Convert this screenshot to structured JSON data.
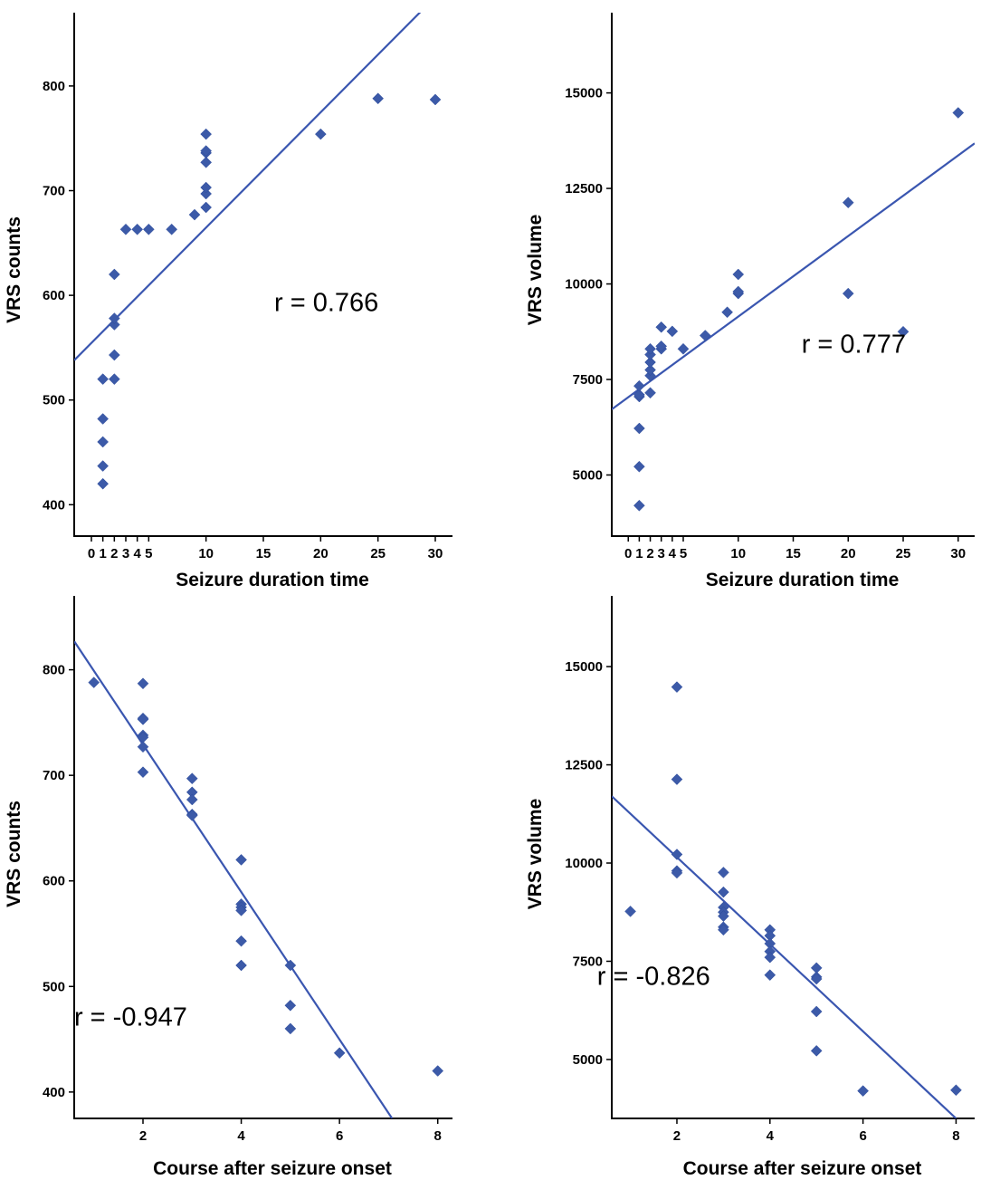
{
  "colors": {
    "point": "#3c5aa8",
    "fit_line": "#3a56b0",
    "axis": "#000000"
  },
  "chart_data": [
    {
      "id": "top-left",
      "type": "scatter",
      "xlabel": "Seizure duration time",
      "ylabel": "VRS counts",
      "xlim": [
        -1.5,
        31.5
      ],
      "ylim": [
        370,
        870
      ],
      "xticks": [
        0,
        1,
        2,
        3,
        4,
        5,
        10,
        15,
        20,
        25,
        30
      ],
      "xtick_labels": [
        "0",
        "1",
        "2",
        "3",
        "4",
        "5",
        "10",
        "15",
        "20",
        "25",
        "30"
      ],
      "yticks": [
        400,
        500,
        600,
        700,
        800
      ],
      "ytick_labels": [
        "400",
        "500",
        "600",
        "700",
        "800"
      ],
      "points": [
        {
          "x": 1,
          "y": 420
        },
        {
          "x": 1,
          "y": 437
        },
        {
          "x": 1,
          "y": 460
        },
        {
          "x": 1,
          "y": 482
        },
        {
          "x": 1,
          "y": 520
        },
        {
          "x": 2,
          "y": 520
        },
        {
          "x": 2,
          "y": 543
        },
        {
          "x": 2,
          "y": 572
        },
        {
          "x": 2,
          "y": 578
        },
        {
          "x": 2,
          "y": 620
        },
        {
          "x": 3,
          "y": 663
        },
        {
          "x": 4,
          "y": 663
        },
        {
          "x": 5,
          "y": 663
        },
        {
          "x": 7,
          "y": 663
        },
        {
          "x": 9,
          "y": 677
        },
        {
          "x": 10,
          "y": 684
        },
        {
          "x": 10,
          "y": 697
        },
        {
          "x": 10,
          "y": 703
        },
        {
          "x": 10,
          "y": 727
        },
        {
          "x": 10,
          "y": 736
        },
        {
          "x": 10,
          "y": 738
        },
        {
          "x": 10,
          "y": 754
        },
        {
          "x": 20,
          "y": 754
        },
        {
          "x": 25,
          "y": 788
        },
        {
          "x": 30,
          "y": 787
        }
      ],
      "fit": {
        "x": [
          -1.5,
          29
        ],
        "y": [
          538,
          874
        ]
      },
      "annotation": "r = 0.766",
      "annotation_pos": {
        "x": 20.5,
        "y": 585
      }
    },
    {
      "id": "top-right",
      "type": "scatter",
      "xlabel": "Seizure duration time",
      "ylabel": "VRS volume",
      "xlim": [
        -1.5,
        31.5
      ],
      "ylim": [
        3400,
        17100
      ],
      "xticks": [
        0,
        1,
        2,
        3,
        4,
        5,
        10,
        15,
        20,
        25,
        30
      ],
      "xtick_labels": [
        "0",
        "1",
        "2",
        "3",
        "4",
        "5",
        "10",
        "15",
        "20",
        "25",
        "30"
      ],
      "yticks": [
        5000,
        7500,
        10000,
        12500,
        15000
      ],
      "ytick_labels": [
        "5000",
        "7500",
        "10000",
        "12500",
        "15000"
      ],
      "points": [
        {
          "x": 1,
          "y": 4200
        },
        {
          "x": 1,
          "y": 5220
        },
        {
          "x": 1,
          "y": 6220
        },
        {
          "x": 1,
          "y": 7050
        },
        {
          "x": 1,
          "y": 7100
        },
        {
          "x": 1,
          "y": 7330
        },
        {
          "x": 2,
          "y": 7150
        },
        {
          "x": 2,
          "y": 7600
        },
        {
          "x": 2,
          "y": 7750
        },
        {
          "x": 2,
          "y": 7950
        },
        {
          "x": 2,
          "y": 8150
        },
        {
          "x": 2,
          "y": 8300
        },
        {
          "x": 3,
          "y": 8300
        },
        {
          "x": 3,
          "y": 8370
        },
        {
          "x": 3,
          "y": 8870
        },
        {
          "x": 4,
          "y": 8760
        },
        {
          "x": 5,
          "y": 8300
        },
        {
          "x": 7,
          "y": 8650
        },
        {
          "x": 9,
          "y": 9260
        },
        {
          "x": 10,
          "y": 9750
        },
        {
          "x": 10,
          "y": 9800
        },
        {
          "x": 10,
          "y": 10250
        },
        {
          "x": 20,
          "y": 12130
        },
        {
          "x": 20,
          "y": 9750
        },
        {
          "x": 25,
          "y": 8750
        },
        {
          "x": 30,
          "y": 14480
        }
      ],
      "fit": {
        "x": [
          -1.5,
          31.5
        ],
        "y": [
          6720,
          13680
        ]
      },
      "annotation": "r = 0.777",
      "annotation_pos": {
        "x": 20.5,
        "y": 8200
      }
    },
    {
      "id": "bottom-left",
      "type": "scatter",
      "xlabel": "Course after seizure onset",
      "ylabel": "VRS counts",
      "xlim": [
        0.6,
        8.3
      ],
      "ylim": [
        375,
        870
      ],
      "xticks": [
        2,
        4,
        6,
        8
      ],
      "xtick_labels": [
        "2",
        "4",
        "6",
        "8"
      ],
      "yticks": [
        400,
        500,
        600,
        700,
        800
      ],
      "ytick_labels": [
        "400",
        "500",
        "600",
        "700",
        "800"
      ],
      "points": [
        {
          "x": 1,
          "y": 788
        },
        {
          "x": 2,
          "y": 787
        },
        {
          "x": 2,
          "y": 754
        },
        {
          "x": 2,
          "y": 753
        },
        {
          "x": 2,
          "y": 738
        },
        {
          "x": 2,
          "y": 736
        },
        {
          "x": 2,
          "y": 727
        },
        {
          "x": 2,
          "y": 703
        },
        {
          "x": 3,
          "y": 697
        },
        {
          "x": 3,
          "y": 684
        },
        {
          "x": 3,
          "y": 677
        },
        {
          "x": 3,
          "y": 663
        },
        {
          "x": 3,
          "y": 662
        },
        {
          "x": 4,
          "y": 620
        },
        {
          "x": 4,
          "y": 578
        },
        {
          "x": 4,
          "y": 575
        },
        {
          "x": 4,
          "y": 572
        },
        {
          "x": 4,
          "y": 543
        },
        {
          "x": 4,
          "y": 520
        },
        {
          "x": 5,
          "y": 520
        },
        {
          "x": 5,
          "y": 482
        },
        {
          "x": 5,
          "y": 460
        },
        {
          "x": 6,
          "y": 437
        },
        {
          "x": 8,
          "y": 420
        }
      ],
      "fit": {
        "x": [
          0.6,
          7.07
        ],
        "y": [
          827,
          375
        ]
      },
      "annotation": "r = -0.947",
      "annotation_pos": {
        "x": 1.75,
        "y": 463
      }
    },
    {
      "id": "bottom-right",
      "type": "scatter",
      "xlabel": "Course after seizure onset",
      "ylabel": "VRS volume",
      "xlim": [
        0.6,
        8.4
      ],
      "ylim": [
        3500,
        16800
      ],
      "xticks": [
        2,
        4,
        6,
        8
      ],
      "xtick_labels": [
        "2",
        "4",
        "6",
        "8"
      ],
      "yticks": [
        5000,
        7500,
        10000,
        12500,
        15000
      ],
      "ytick_labels": [
        "5000",
        "7500",
        "10000",
        "12500",
        "15000"
      ],
      "points": [
        {
          "x": 1,
          "y": 8770
        },
        {
          "x": 2,
          "y": 14480
        },
        {
          "x": 2,
          "y": 12130
        },
        {
          "x": 2,
          "y": 10220
        },
        {
          "x": 2,
          "y": 9800
        },
        {
          "x": 2,
          "y": 9750
        },
        {
          "x": 3,
          "y": 9760
        },
        {
          "x": 3,
          "y": 9260
        },
        {
          "x": 3,
          "y": 8870
        },
        {
          "x": 3,
          "y": 8750
        },
        {
          "x": 3,
          "y": 8650
        },
        {
          "x": 3,
          "y": 8370
        },
        {
          "x": 3,
          "y": 8300
        },
        {
          "x": 4,
          "y": 8300
        },
        {
          "x": 4,
          "y": 8150
        },
        {
          "x": 4,
          "y": 7950
        },
        {
          "x": 4,
          "y": 7750
        },
        {
          "x": 4,
          "y": 7600
        },
        {
          "x": 4,
          "y": 7150
        },
        {
          "x": 5,
          "y": 7330
        },
        {
          "x": 5,
          "y": 7100
        },
        {
          "x": 5,
          "y": 7050
        },
        {
          "x": 5,
          "y": 6220
        },
        {
          "x": 5,
          "y": 5220
        },
        {
          "x": 6,
          "y": 4200
        },
        {
          "x": 8,
          "y": 4220
        }
      ],
      "fit": {
        "x": [
          0.6,
          8.0
        ],
        "y": [
          11700,
          3500
        ]
      },
      "annotation": "r = -0.826",
      "annotation_pos": {
        "x": 1.5,
        "y": 6900
      }
    }
  ]
}
